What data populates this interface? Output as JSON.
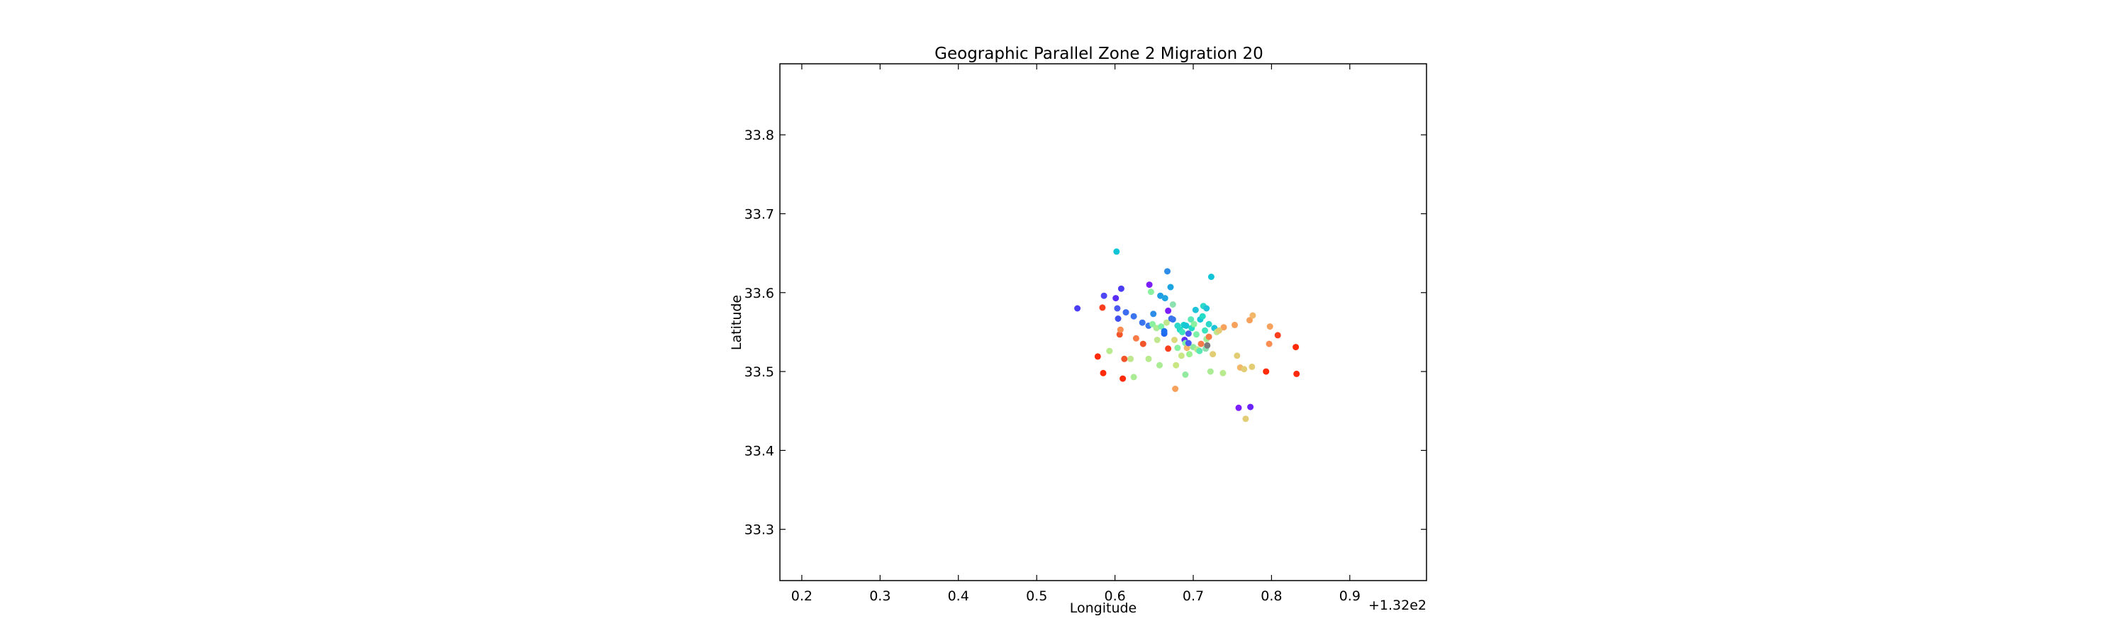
{
  "chart_data": {
    "type": "scatter",
    "title": "Geographic Parallel Zone 2 Migration 20",
    "xlabel": "Longitude",
    "ylabel": "Latitude",
    "x_offset_label": "+1.32e2",
    "xlim": [
      132.172,
      132.998
    ],
    "ylim": [
      33.235,
      33.89
    ],
    "xticks": [
      132.2,
      132.3,
      132.4,
      132.5,
      132.6,
      132.7,
      132.8,
      132.9
    ],
    "xtick_labels": [
      "0.2",
      "0.3",
      "0.4",
      "0.5",
      "0.6",
      "0.7",
      "0.8",
      "0.9"
    ],
    "yticks": [
      33.3,
      33.4,
      33.5,
      33.6,
      33.7,
      33.8
    ],
    "ytick_labels": [
      "33.3",
      "33.4",
      "33.5",
      "33.6",
      "33.7",
      "33.8"
    ],
    "grid": false,
    "legend": "none",
    "colormap": "rainbow",
    "points": [
      {
        "x": 132.552,
        "y": 33.58,
        "c": "#4b3cf5"
      },
      {
        "x": 132.586,
        "y": 33.596,
        "c": "#4d47f5"
      },
      {
        "x": 132.601,
        "y": 33.593,
        "c": "#5a2cf9"
      },
      {
        "x": 132.608,
        "y": 33.605,
        "c": "#4b3cf5"
      },
      {
        "x": 132.604,
        "y": 33.567,
        "c": "#3f4ff4"
      },
      {
        "x": 132.603,
        "y": 33.58,
        "c": "#4a59f2"
      },
      {
        "x": 132.614,
        "y": 33.575,
        "c": "#3c6cf0"
      },
      {
        "x": 132.624,
        "y": 33.57,
        "c": "#3a74ee"
      },
      {
        "x": 132.635,
        "y": 33.562,
        "c": "#3a74ee"
      },
      {
        "x": 132.643,
        "y": 33.558,
        "c": "#3a78ee"
      },
      {
        "x": 132.644,
        "y": 33.61,
        "c": "#7c1dfb"
      },
      {
        "x": 132.649,
        "y": 33.573,
        "c": "#2e8de8"
      },
      {
        "x": 132.658,
        "y": 33.596,
        "c": "#1f9ee4"
      },
      {
        "x": 132.664,
        "y": 33.593,
        "c": "#23a5e2"
      },
      {
        "x": 132.663,
        "y": 33.548,
        "c": "#2066f0"
      },
      {
        "x": 132.667,
        "y": 33.627,
        "c": "#2e8de8"
      },
      {
        "x": 132.671,
        "y": 33.607,
        "c": "#1aa4e1"
      },
      {
        "x": 132.668,
        "y": 33.577,
        "c": "#7c1dfb"
      },
      {
        "x": 132.674,
        "y": 33.585,
        "c": "#8de0b0"
      },
      {
        "x": 132.674,
        "y": 33.566,
        "c": "#2f7aee"
      },
      {
        "x": 132.602,
        "y": 33.652,
        "c": "#10c4d8"
      },
      {
        "x": 132.723,
        "y": 33.62,
        "c": "#10c4d8"
      },
      {
        "x": 132.689,
        "y": 33.54,
        "c": "#5a2cf9"
      },
      {
        "x": 132.694,
        "y": 33.548,
        "c": "#4a59f2"
      },
      {
        "x": 132.688,
        "y": 33.559,
        "c": "#19d0cd"
      },
      {
        "x": 132.698,
        "y": 33.555,
        "c": "#22dcc6"
      },
      {
        "x": 132.703,
        "y": 33.578,
        "c": "#1ec2d9"
      },
      {
        "x": 132.709,
        "y": 33.566,
        "c": "#16c6d6"
      },
      {
        "x": 132.713,
        "y": 33.583,
        "c": "#2cd8c9"
      },
      {
        "x": 132.715,
        "y": 33.552,
        "c": "#3fe3bd"
      },
      {
        "x": 132.72,
        "y": 33.56,
        "c": "#2cd8c9"
      },
      {
        "x": 132.727,
        "y": 33.555,
        "c": "#1ec2d9"
      },
      {
        "x": 132.73,
        "y": 33.55,
        "c": "#c0e78e"
      },
      {
        "x": 132.739,
        "y": 33.556,
        "c": "#f7a25c"
      },
      {
        "x": 132.753,
        "y": 33.559,
        "c": "#f7a25c"
      },
      {
        "x": 132.716,
        "y": 33.529,
        "c": "#8de0b0"
      },
      {
        "x": 132.7,
        "y": 33.531,
        "c": "#92ea9f"
      },
      {
        "x": 132.705,
        "y": 33.528,
        "c": "#b7eb8d"
      },
      {
        "x": 132.695,
        "y": 33.522,
        "c": "#9ef190"
      },
      {
        "x": 132.685,
        "y": 33.52,
        "c": "#c9e684"
      },
      {
        "x": 132.68,
        "y": 33.53,
        "c": "#8af1a0"
      },
      {
        "x": 132.69,
        "y": 33.536,
        "c": "#7cf2a8"
      },
      {
        "x": 132.71,
        "y": 33.535,
        "c": "#f97b48"
      },
      {
        "x": 132.717,
        "y": 33.541,
        "c": "#a1f19a"
      },
      {
        "x": 132.725,
        "y": 33.522,
        "c": "#e3cd74"
      },
      {
        "x": 132.722,
        "y": 33.5,
        "c": "#a9ec94"
      },
      {
        "x": 132.738,
        "y": 33.498,
        "c": "#b7eb8d"
      },
      {
        "x": 132.756,
        "y": 33.52,
        "c": "#e3cd74"
      },
      {
        "x": 132.76,
        "y": 33.505,
        "c": "#f2b768"
      },
      {
        "x": 132.765,
        "y": 33.503,
        "c": "#e3cd74"
      },
      {
        "x": 132.775,
        "y": 33.506,
        "c": "#e3cd74"
      },
      {
        "x": 132.793,
        "y": 33.5,
        "c": "#ff2a0a"
      },
      {
        "x": 132.772,
        "y": 33.565,
        "c": "#f7a25c"
      },
      {
        "x": 132.776,
        "y": 33.571,
        "c": "#f2b768"
      },
      {
        "x": 132.798,
        "y": 33.557,
        "c": "#f7a25c"
      },
      {
        "x": 132.808,
        "y": 33.546,
        "c": "#fb3f1e"
      },
      {
        "x": 132.797,
        "y": 33.535,
        "c": "#f98d52"
      },
      {
        "x": 132.831,
        "y": 33.531,
        "c": "#ff2a0a"
      },
      {
        "x": 132.832,
        "y": 33.497,
        "c": "#ff2a0a"
      },
      {
        "x": 132.758,
        "y": 33.454,
        "c": "#7c1dfb"
      },
      {
        "x": 132.773,
        "y": 33.455,
        "c": "#6a24fa"
      },
      {
        "x": 132.767,
        "y": 33.44,
        "c": "#e3cd74"
      },
      {
        "x": 132.677,
        "y": 33.478,
        "c": "#f7a25c"
      },
      {
        "x": 132.69,
        "y": 33.496,
        "c": "#92ea9f"
      },
      {
        "x": 132.678,
        "y": 33.508,
        "c": "#c9e684"
      },
      {
        "x": 132.657,
        "y": 33.508,
        "c": "#a9ec94"
      },
      {
        "x": 132.643,
        "y": 33.516,
        "c": "#b7eb8d"
      },
      {
        "x": 132.62,
        "y": 33.516,
        "c": "#c0e78e"
      },
      {
        "x": 132.624,
        "y": 33.493,
        "c": "#a9ec94"
      },
      {
        "x": 132.61,
        "y": 33.491,
        "c": "#ff2a0a"
      },
      {
        "x": 132.612,
        "y": 33.516,
        "c": "#f2552a"
      },
      {
        "x": 132.593,
        "y": 33.526,
        "c": "#b7eb8d"
      },
      {
        "x": 132.578,
        "y": 33.519,
        "c": "#ff2a0a"
      },
      {
        "x": 132.585,
        "y": 33.498,
        "c": "#ff2a0a"
      },
      {
        "x": 132.584,
        "y": 33.581,
        "c": "#fb3f1e"
      },
      {
        "x": 132.606,
        "y": 33.547,
        "c": "#f2552a"
      },
      {
        "x": 132.607,
        "y": 33.553,
        "c": "#f98d52"
      },
      {
        "x": 132.627,
        "y": 33.542,
        "c": "#f97b48"
      },
      {
        "x": 132.636,
        "y": 33.535,
        "c": "#f2552a"
      },
      {
        "x": 132.668,
        "y": 33.529,
        "c": "#fb3f1e"
      },
      {
        "x": 132.648,
        "y": 33.56,
        "c": "#8af1a0"
      },
      {
        "x": 132.653,
        "y": 33.555,
        "c": "#a9ec94"
      },
      {
        "x": 132.659,
        "y": 33.557,
        "c": "#7cf2a8"
      },
      {
        "x": 132.666,
        "y": 33.562,
        "c": "#c0e78e"
      },
      {
        "x": 132.672,
        "y": 33.567,
        "c": "#3a74ee"
      },
      {
        "x": 132.683,
        "y": 33.553,
        "c": "#22dcc6"
      },
      {
        "x": 132.686,
        "y": 33.55,
        "c": "#3fe3bd"
      },
      {
        "x": 132.691,
        "y": 33.558,
        "c": "#16c6d6"
      },
      {
        "x": 132.697,
        "y": 33.566,
        "c": "#5ae9b4"
      },
      {
        "x": 132.701,
        "y": 33.56,
        "c": "#8af1a0"
      },
      {
        "x": 132.712,
        "y": 33.57,
        "c": "#22dcc6"
      },
      {
        "x": 132.704,
        "y": 33.547,
        "c": "#7cf2a8"
      },
      {
        "x": 132.718,
        "y": 33.533,
        "c": "#7c7c7c"
      },
      {
        "x": 132.708,
        "y": 33.526,
        "c": "#5ae9b4"
      },
      {
        "x": 132.692,
        "y": 33.53,
        "c": "#f2b768"
      },
      {
        "x": 132.676,
        "y": 33.54,
        "c": "#ddd879"
      },
      {
        "x": 132.663,
        "y": 33.551,
        "c": "#1e6ff0"
      },
      {
        "x": 132.646,
        "y": 33.601,
        "c": "#8af1a0"
      },
      {
        "x": 132.694,
        "y": 33.536,
        "c": "#4a59f2"
      },
      {
        "x": 132.717,
        "y": 33.58,
        "c": "#1ec2d9"
      },
      {
        "x": 132.733,
        "y": 33.552,
        "c": "#e3cd74"
      },
      {
        "x": 132.72,
        "y": 33.544,
        "c": "#f97b48"
      },
      {
        "x": 132.654,
        "y": 33.54,
        "c": "#c0e78e"
      },
      {
        "x": 132.68,
        "y": 33.558,
        "c": "#2cd8c9"
      }
    ]
  }
}
